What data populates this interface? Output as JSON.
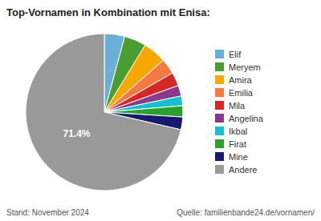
{
  "chart_data": {
    "type": "pie",
    "title": "Top-Vornamen in Kombination mit Enisa:",
    "categories": [
      "Elif",
      "Meryem",
      "Amira",
      "Emilia",
      "Mila",
      "Angelina",
      "Ikbal",
      "Firat",
      "Mine",
      "Andere"
    ],
    "values": [
      4.2,
      4.5,
      4.8,
      3.2,
      2.8,
      2.2,
      2.0,
      2.3,
      2.6,
      71.4
    ],
    "colors": [
      "#6baed6",
      "#4a9e2f",
      "#f7a800",
      "#f47942",
      "#d62728",
      "#8b3a8b",
      "#17becf",
      "#2ca02c",
      "#191970",
      "#999999"
    ],
    "data_labels": true,
    "value_labels": [
      null,
      null,
      null,
      null,
      null,
      null,
      null,
      null,
      null,
      "71.4%"
    ],
    "legend": "right",
    "annotations": [
      "Stand: November 2024",
      "Quelle: familienbande24.de/vornamen/"
    ]
  }
}
